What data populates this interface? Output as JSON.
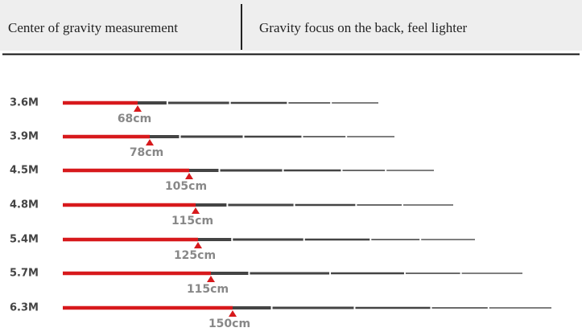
{
  "header": {
    "left": "Center of gravity measurement",
    "right": "Gravity focus on the back, feel lighter"
  },
  "rows": [
    {
      "length": "3.6M",
      "gravity": "68cm"
    },
    {
      "length": "3.9M",
      "gravity": "78cm"
    },
    {
      "length": "4.5M",
      "gravity": "105cm"
    },
    {
      "length": "4.8M",
      "gravity": "115cm"
    },
    {
      "length": "5.4M",
      "gravity": "125cm"
    },
    {
      "length": "5.7M",
      "gravity": "115cm"
    },
    {
      "length": "6.3M",
      "gravity": "150cm"
    }
  ]
}
